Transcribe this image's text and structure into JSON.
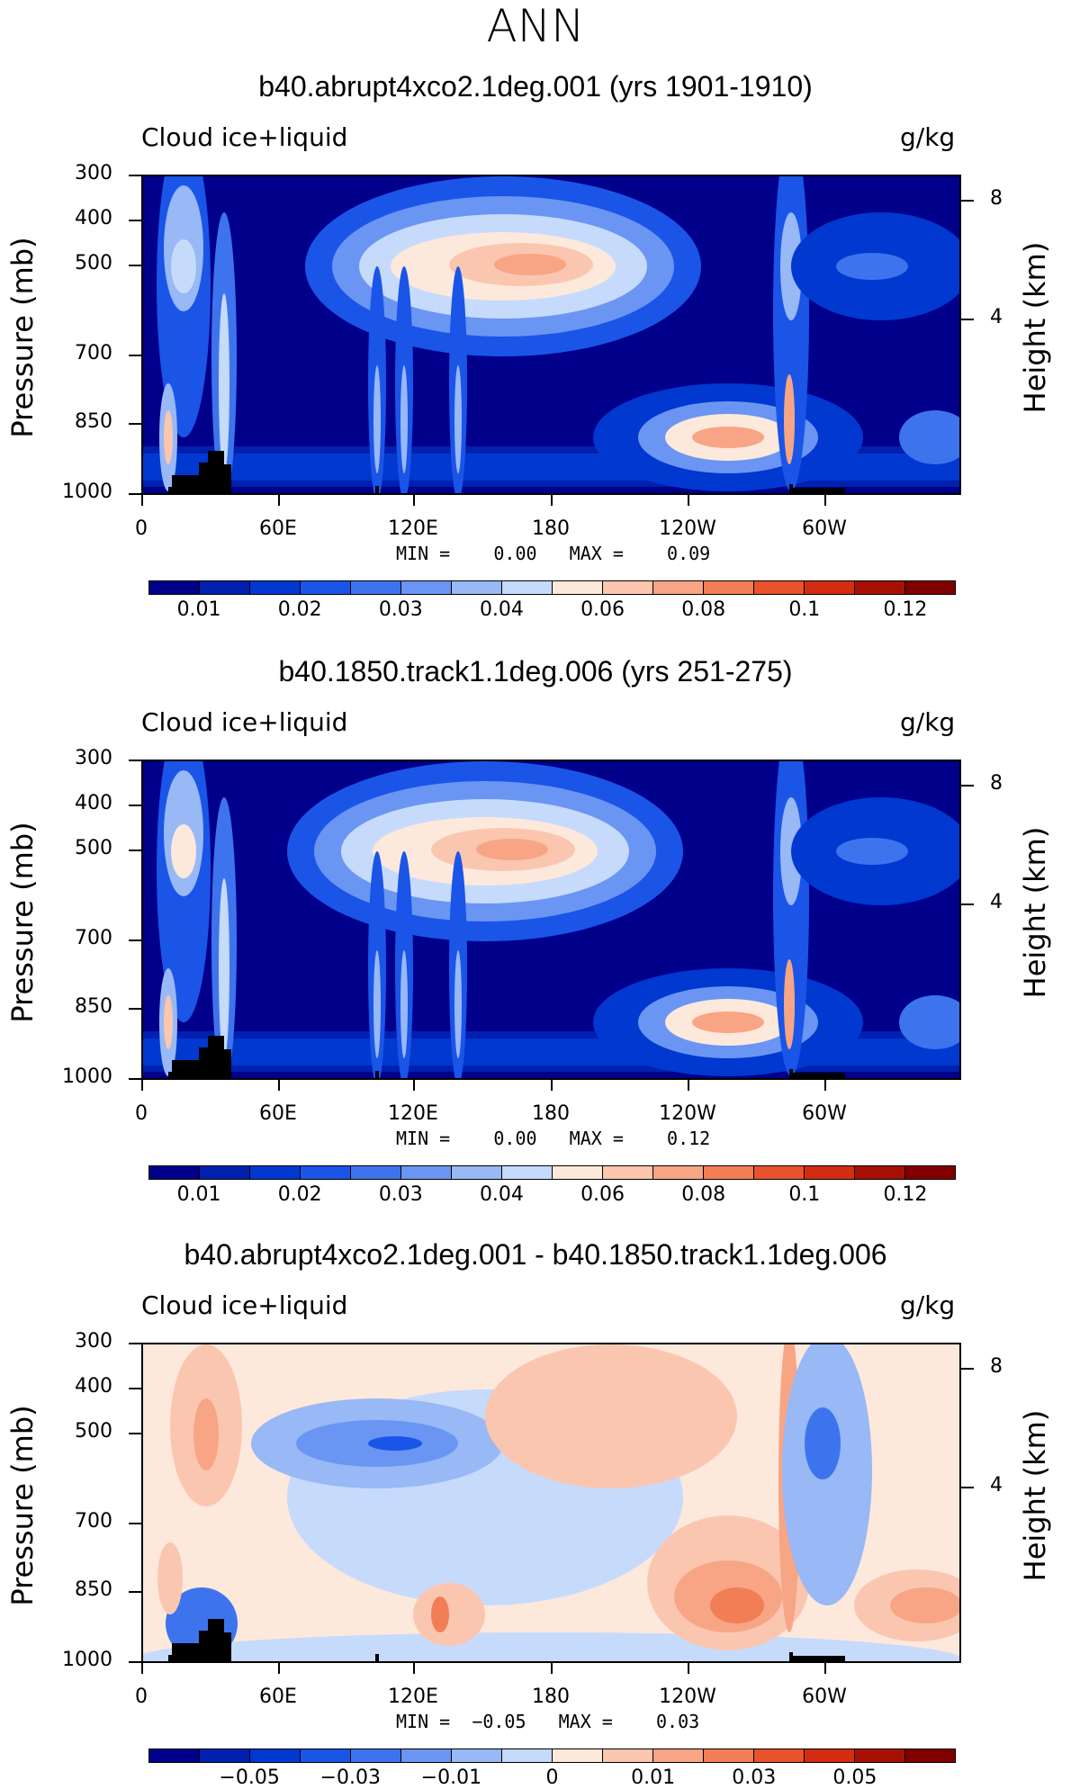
{
  "page_title": "ANN",
  "colors": {
    "negative_to_positive": [
      "#00008b",
      "#0020b0",
      "#0038d0",
      "#1a55e8",
      "#3d74ee",
      "#6a95f2",
      "#98b8f6",
      "#c6dafc",
      "#fde8dc",
      "#fbc6b0",
      "#f7a584",
      "#f17e55",
      "#e8522c",
      "#d32c10",
      "#a81005",
      "#800000"
    ]
  },
  "chart_data": [
    {
      "type": "heatmap",
      "title": "b40.abrupt4xco2.1deg.001 (yrs 1901-1910)",
      "variable_label": "Cloud ice+liquid",
      "units": "g/kg",
      "ylabel": "Pressure (mb)",
      "ylabel_right": "Height (km)",
      "yticks": [
        "300",
        "400",
        "500",
        "700",
        "850",
        "1000"
      ],
      "yticks_right": [
        "8",
        "4"
      ],
      "xticks": [
        "0",
        "60E",
        "120E",
        "180",
        "120W",
        "60W"
      ],
      "minmax": "MIN =    0.00   MAX =    0.09",
      "colorbar_labels": [
        "0.01",
        "0.02",
        "0.03",
        "0.04",
        "0.06",
        "0.08",
        "0.1",
        "0.12"
      ],
      "colorbar_levels": [
        "0.005",
        "0.01",
        "0.015",
        "0.02",
        "0.025",
        "0.03",
        "0.035",
        "0.04",
        "0.05",
        "0.06",
        "0.07",
        "0.08",
        "0.09",
        "0.1",
        "0.11",
        "0.12"
      ],
      "xlim": [
        0,
        360
      ],
      "ylim": [
        1000,
        300
      ]
    },
    {
      "type": "heatmap",
      "title": "b40.1850.track1.1deg.006 (yrs 251-275)",
      "variable_label": "Cloud ice+liquid",
      "units": "g/kg",
      "ylabel": "Pressure (mb)",
      "ylabel_right": "Height (km)",
      "yticks": [
        "300",
        "400",
        "500",
        "700",
        "850",
        "1000"
      ],
      "yticks_right": [
        "8",
        "4"
      ],
      "xticks": [
        "0",
        "60E",
        "120E",
        "180",
        "120W",
        "60W"
      ],
      "minmax": "MIN =    0.00   MAX =    0.12",
      "colorbar_labels": [
        "0.01",
        "0.02",
        "0.03",
        "0.04",
        "0.06",
        "0.08",
        "0.1",
        "0.12"
      ],
      "xlim": [
        0,
        360
      ],
      "ylim": [
        1000,
        300
      ]
    },
    {
      "type": "heatmap",
      "title": "b40.abrupt4xco2.1deg.001 - b40.1850.track1.1deg.006",
      "variable_label": "Cloud ice+liquid",
      "units": "g/kg",
      "ylabel": "Pressure (mb)",
      "ylabel_right": "Height (km)",
      "yticks": [
        "300",
        "400",
        "500",
        "700",
        "850",
        "1000"
      ],
      "yticks_right": [
        "8",
        "4"
      ],
      "xticks": [
        "0",
        "60E",
        "120E",
        "180",
        "120W",
        "60W"
      ],
      "minmax": "MIN =  −0.05   MAX =    0.03",
      "colorbar_labels": [
        "−0.05",
        "−0.03",
        "−0.01",
        "0",
        "0.01",
        "0.03",
        "0.05"
      ],
      "xlim": [
        0,
        360
      ],
      "ylim": [
        1000,
        300
      ]
    }
  ]
}
